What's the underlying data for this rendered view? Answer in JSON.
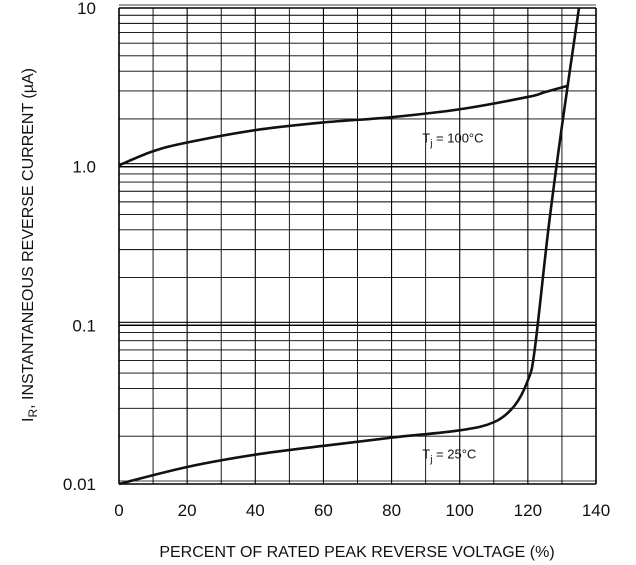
{
  "chart_data": {
    "type": "line",
    "xlabel": "PERCENT OF RATED PEAK REVERSE VOLTAGE (%)",
    "ylabel": "I, INSTANTANEOUS REVERSE CURRENT (µA)",
    "ylabel_subscript": "R",
    "x_scale": "linear",
    "y_scale": "log",
    "xlim": [
      0,
      140
    ],
    "ylim": [
      0.01,
      10
    ],
    "x_ticks": [
      0,
      20,
      40,
      60,
      80,
      100,
      120,
      140
    ],
    "x_tick_labels": [
      "0",
      "20",
      "40",
      "60",
      "80",
      "100",
      "120",
      "140"
    ],
    "y_ticks": [
      0.01,
      0.1,
      1.0,
      10
    ],
    "y_tick_labels": [
      "0.01",
      "0.1",
      "1.0",
      "10"
    ],
    "grid": true,
    "series": [
      {
        "x": [
          0,
          10,
          20,
          40,
          60,
          80,
          100,
          120,
          125,
          132
        ],
        "y": [
          1.02,
          1.25,
          1.42,
          1.7,
          1.9,
          2.05,
          2.3,
          2.75,
          2.95,
          3.25
        ]
      },
      {
        "x": [
          0,
          20,
          40,
          60,
          80,
          100,
          110,
          116,
          120,
          122,
          126,
          130,
          135
        ],
        "y": [
          0.01,
          0.0128,
          0.0153,
          0.0174,
          0.0196,
          0.0218,
          0.0245,
          0.031,
          0.045,
          0.07,
          0.4,
          1.8,
          10
        ]
      }
    ],
    "annotations": [
      {
        "text": "T",
        "sub": "j",
        "rest": " = 100°C",
        "x": 89,
        "y": 1.42
      },
      {
        "text": "T",
        "sub": "j",
        "rest": " = 25°C",
        "x": 89,
        "y": 0.0145
      }
    ]
  }
}
